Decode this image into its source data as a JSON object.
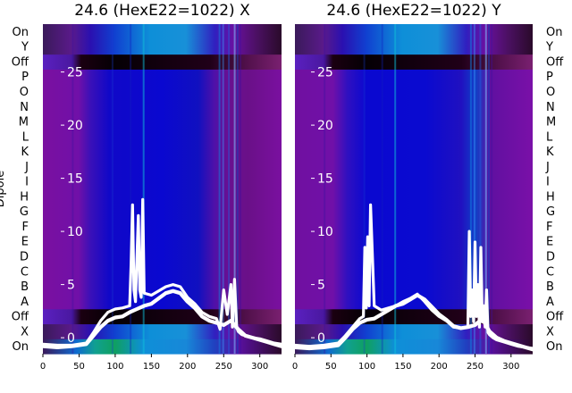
{
  "chart_data": [
    {
      "type": "heatmap",
      "title": "24.6 (HexE22=1022) X",
      "ylabel": "Dipole",
      "y_categories": [
        "On",
        "X",
        "Off",
        "A",
        "B",
        "C",
        "D",
        "E",
        "F",
        "G",
        "H",
        "I",
        "J",
        "K",
        "L",
        "M",
        "N",
        "O",
        "P",
        "Off",
        "Y",
        "On"
      ],
      "x_ticks": [
        0,
        50,
        100,
        150,
        200,
        250,
        300
      ],
      "xlim": [
        0,
        330
      ],
      "overlay_ticks": [
        0,
        5,
        10,
        15,
        20,
        25
      ],
      "overlay_ylim": [
        -1.5,
        29.5
      ],
      "traces": [
        {
          "x": [
            0,
            20,
            40,
            60,
            70,
            80,
            90,
            100,
            110,
            120,
            122,
            124,
            126,
            128,
            130,
            132,
            134,
            136,
            138,
            140,
            150,
            160,
            170,
            180,
            190,
            200,
            210,
            220,
            230,
            240,
            245,
            250,
            255,
            260,
            262,
            265,
            268,
            270,
            275,
            280,
            290,
            300,
            310,
            320,
            330
          ],
          "y": [
            -0.6,
            -0.7,
            -0.7,
            -0.5,
            0.5,
            1.6,
            2.4,
            2.7,
            2.8,
            3.0,
            7.0,
            12.5,
            4.5,
            3.4,
            7.5,
            11.5,
            4.5,
            3.8,
            13.0,
            4.2,
            4.0,
            4.4,
            4.8,
            5.0,
            4.8,
            3.8,
            3.2,
            2.4,
            2.0,
            1.8,
            0.8,
            4.5,
            2.2,
            5.0,
            1.0,
            5.5,
            1.0,
            0.6,
            0.3,
            0.2,
            0.0,
            -0.1,
            -0.3,
            -0.5,
            -0.6
          ]
        },
        {
          "x": [
            0,
            20,
            40,
            60,
            70,
            80,
            90,
            100,
            110,
            120,
            130,
            140,
            150,
            160,
            170,
            180,
            190,
            200,
            210,
            220,
            230,
            240,
            250,
            260,
            270,
            280,
            290,
            300,
            310,
            320,
            330
          ],
          "y": [
            -0.8,
            -0.9,
            -0.8,
            -0.6,
            0.2,
            1.0,
            1.6,
            1.9,
            2.0,
            2.4,
            2.7,
            3.0,
            3.2,
            3.7,
            4.2,
            4.4,
            4.2,
            3.4,
            2.8,
            2.0,
            1.6,
            1.4,
            1.2,
            1.6,
            0.8,
            0.2,
            0.0,
            -0.2,
            -0.4,
            -0.6,
            -0.8
          ]
        }
      ]
    },
    {
      "type": "heatmap",
      "title": "24.6 (HexE22=1022) Y",
      "ylabel": "",
      "y_categories": [
        "On",
        "X",
        "Off",
        "A",
        "B",
        "C",
        "D",
        "E",
        "F",
        "G",
        "H",
        "I",
        "J",
        "K",
        "L",
        "M",
        "N",
        "O",
        "P",
        "Off",
        "Y",
        "On"
      ],
      "x_ticks": [
        0,
        50,
        100,
        150,
        200,
        250,
        300
      ],
      "xlim": [
        0,
        330
      ],
      "overlay_ticks": [
        0,
        5,
        10,
        15,
        20,
        25
      ],
      "overlay_ylim": [
        -1.5,
        29.5
      ],
      "traces": [
        {
          "x": [
            0,
            20,
            40,
            60,
            70,
            80,
            90,
            95,
            97,
            99,
            101,
            103,
            105,
            110,
            120,
            130,
            140,
            150,
            160,
            170,
            180,
            190,
            200,
            210,
            220,
            230,
            240,
            242,
            244,
            246,
            248,
            250,
            252,
            254,
            256,
            258,
            260,
            262,
            264,
            266,
            268,
            270,
            275,
            280,
            290,
            300,
            310,
            320,
            330
          ],
          "y": [
            -0.7,
            -0.8,
            -0.7,
            -0.5,
            0.2,
            1.0,
            1.8,
            2.0,
            8.5,
            2.8,
            9.5,
            3.0,
            12.5,
            3.0,
            2.6,
            2.8,
            3.0,
            3.4,
            3.7,
            4.1,
            3.4,
            2.6,
            2.0,
            1.6,
            1.0,
            0.9,
            1.0,
            10.0,
            2.0,
            4.5,
            1.5,
            9.0,
            2.0,
            5.0,
            1.0,
            8.5,
            1.5,
            3.0,
            1.0,
            4.5,
            0.5,
            0.3,
            0.0,
            -0.2,
            -0.4,
            -0.6,
            -0.8,
            -0.9,
            -1.0
          ]
        },
        {
          "x": [
            0,
            20,
            40,
            60,
            70,
            80,
            90,
            100,
            110,
            120,
            130,
            140,
            150,
            160,
            170,
            180,
            190,
            200,
            210,
            220,
            230,
            240,
            250,
            260,
            270,
            280,
            290,
            300,
            310,
            320,
            330
          ],
          "y": [
            -0.9,
            -1.0,
            -0.9,
            -0.7,
            0.0,
            0.8,
            1.4,
            1.7,
            1.8,
            2.2,
            2.6,
            3.0,
            3.2,
            3.6,
            4.0,
            3.6,
            2.9,
            2.2,
            1.7,
            1.1,
            0.9,
            1.0,
            1.2,
            1.8,
            0.6,
            0.0,
            -0.3,
            -0.5,
            -0.7,
            -0.9,
            -1.1
          ]
        }
      ]
    }
  ]
}
